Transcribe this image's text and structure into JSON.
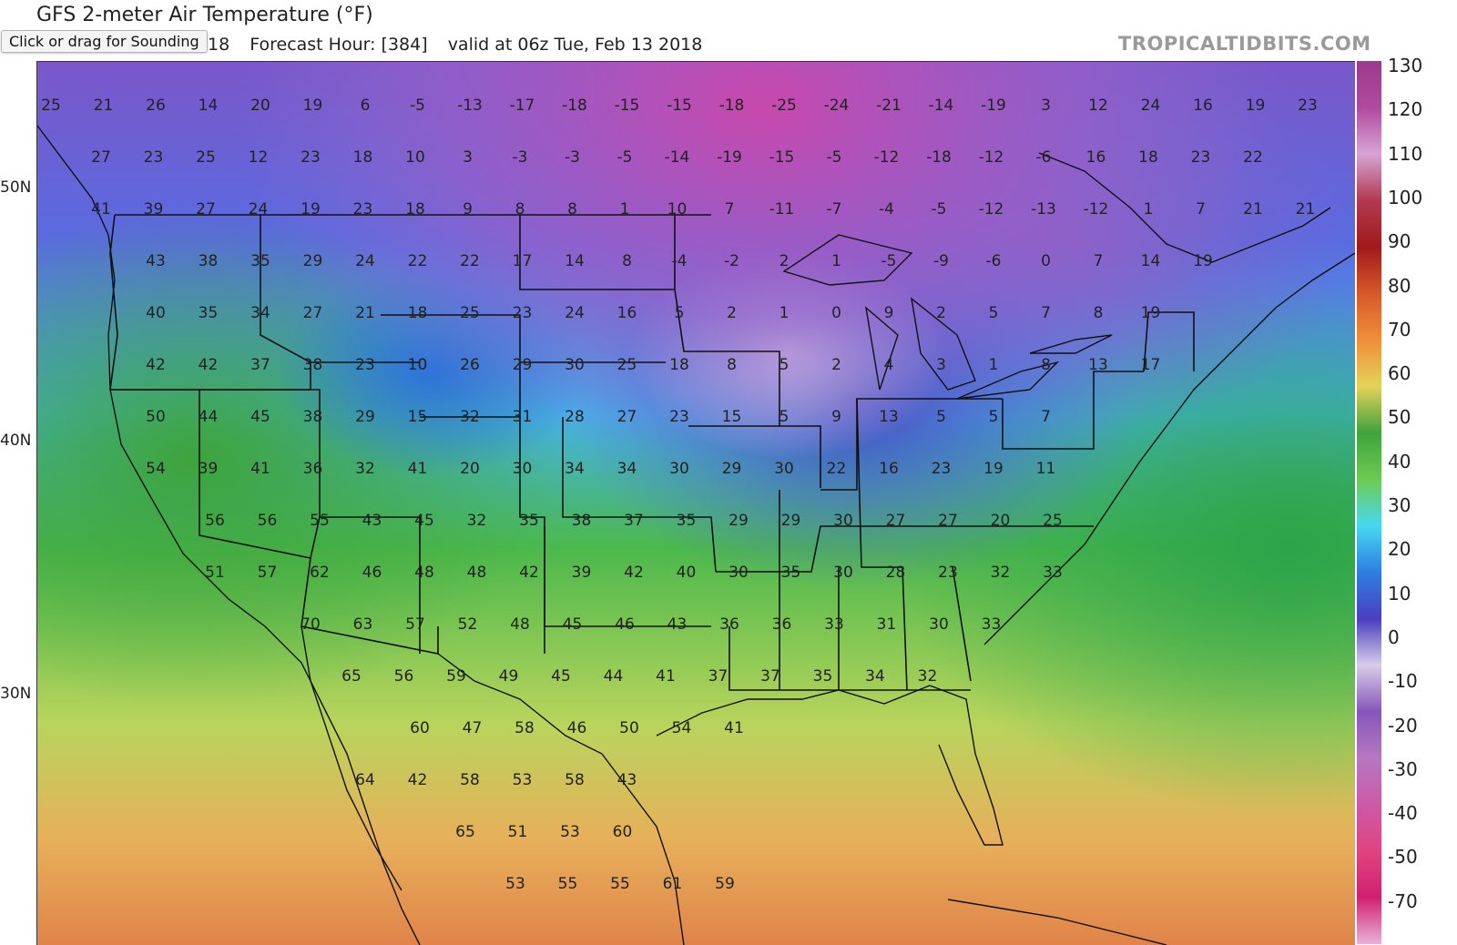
{
  "header": {
    "title": "GFS 2-meter Air Temperature (°F)",
    "run_label_partial": "18",
    "forecast_hour": "Forecast Hour: [384]",
    "valid_time": "valid at 06z Tue, Feb 13 2018",
    "brand": "TROPICALTIDBITS.COM"
  },
  "tooltip": {
    "text": "Click or drag for Sounding"
  },
  "map": {
    "latitude_labels": [
      "50N",
      "40N",
      "30N"
    ],
    "grid_values": [
      [
        "25",
        "21",
        "26",
        "14",
        "20",
        "19",
        "6",
        "-5",
        "-13",
        "-17",
        "-18",
        "-15",
        "-15",
        "-18",
        "-25",
        "-24",
        "-21",
        "-14",
        "-19",
        "3",
        "12",
        "24",
        "16",
        "19",
        "23"
      ],
      [
        "27",
        "23",
        "25",
        "12",
        "23",
        "18",
        "10",
        "3",
        "-3",
        "-3",
        "-5",
        "-14",
        "-19",
        "-15",
        "-5",
        "-12",
        "-18",
        "-12",
        "-6",
        "16",
        "18",
        "23",
        "22"
      ],
      [
        "41",
        "39",
        "27",
        "24",
        "19",
        "23",
        "18",
        "9",
        "8",
        "8",
        "1",
        "10",
        "7",
        "-11",
        "-7",
        "-4",
        "-5",
        "-12",
        "-13",
        "-12",
        "1",
        "7",
        "21",
        "21"
      ],
      [
        "43",
        "38",
        "35",
        "29",
        "24",
        "22",
        "22",
        "17",
        "14",
        "8",
        "-4",
        "-2",
        "2",
        "1",
        "-5",
        "-9",
        "-6",
        "0",
        "7",
        "14",
        "19"
      ],
      [
        "40",
        "35",
        "34",
        "27",
        "21",
        "18",
        "25",
        "23",
        "24",
        "16",
        "5",
        "2",
        "1",
        "0",
        "9",
        "2",
        "5",
        "7",
        "8",
        "19"
      ],
      [
        "42",
        "42",
        "37",
        "38",
        "23",
        "10",
        "26",
        "29",
        "30",
        "25",
        "18",
        "8",
        "5",
        "2",
        "4",
        "3",
        "1",
        "8",
        "13",
        "17"
      ],
      [
        "50",
        "44",
        "45",
        "38",
        "29",
        "15",
        "32",
        "31",
        "28",
        "27",
        "23",
        "15",
        "5",
        "9",
        "13",
        "5",
        "5",
        "7"
      ],
      [
        "54",
        "39",
        "41",
        "36",
        "32",
        "41",
        "20",
        "30",
        "34",
        "34",
        "30",
        "29",
        "30",
        "22",
        "16",
        "23",
        "19",
        "11"
      ],
      [
        "56",
        "56",
        "55",
        "43",
        "45",
        "32",
        "35",
        "38",
        "37",
        "35",
        "29",
        "29",
        "30",
        "27",
        "27",
        "20",
        "25"
      ],
      [
        "51",
        "57",
        "62",
        "46",
        "48",
        "48",
        "42",
        "39",
        "42",
        "40",
        "30",
        "35",
        "30",
        "28",
        "23",
        "32",
        "33"
      ],
      [
        "70",
        "63",
        "57",
        "52",
        "48",
        "45",
        "46",
        "43",
        "36",
        "36",
        "33",
        "31",
        "30",
        "33"
      ],
      [
        "65",
        "56",
        "59",
        "49",
        "45",
        "44",
        "41",
        "37",
        "37",
        "35",
        "34",
        "32"
      ],
      [
        "60",
        "47",
        "58",
        "46",
        "50",
        "54",
        "41"
      ],
      [
        "64",
        "42",
        "58",
        "53",
        "58",
        "43"
      ],
      [
        "65",
        "51",
        "53",
        "60"
      ],
      [
        "53",
        "55",
        "55",
        "61",
        "59"
      ]
    ],
    "scale_values": [
      "130",
      "120",
      "110",
      "100",
      "90",
      "80",
      "70",
      "60",
      "50",
      "40",
      "30",
      "20",
      "10",
      "0",
      "-10",
      "-20",
      "-30",
      "-40",
      "-50",
      "-70"
    ],
    "scale_colors": [
      "#9c3a8e",
      "#b04a9f",
      "#d7a4d4",
      "#b13a52",
      "#a01a1a",
      "#d6582a",
      "#ef8e3a",
      "#e5d25a",
      "#3fa33c",
      "#6ccb52",
      "#48d8f0",
      "#2e7fe0",
      "#4a3fc0",
      "#d8cde8",
      "#8656b8",
      "#b678c0",
      "#cc5aa8",
      "#e0447f",
      "#d02070",
      "#e9b3d6"
    ]
  }
}
